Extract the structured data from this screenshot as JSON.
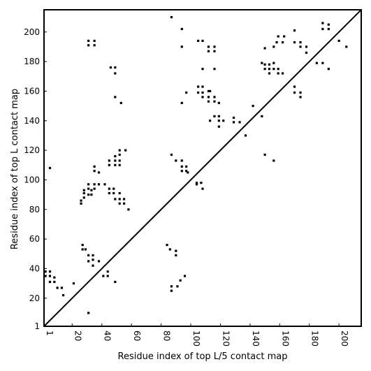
{
  "chart_data": {
    "type": "scatter",
    "title": "",
    "xlabel": "Residue index of top L/5 contact map",
    "ylabel": "Residue index of top L contact map",
    "xlim": [
      1,
      215
    ],
    "ylim": [
      1,
      215
    ],
    "x_ticks": [
      1,
      20,
      40,
      60,
      80,
      100,
      120,
      140,
      160,
      180,
      200
    ],
    "y_ticks": [
      1,
      20,
      40,
      60,
      80,
      100,
      120,
      140,
      160,
      180,
      200
    ],
    "x_tick_labels": [
      "1",
      "20",
      "40",
      "60",
      "80",
      "100",
      "120",
      "140",
      "160",
      "180",
      "200"
    ],
    "y_tick_labels": [
      "1",
      "20",
      "40",
      "60",
      "80",
      "100",
      "120",
      "140",
      "160",
      "180",
      "200"
    ],
    "grid": false,
    "diagonal": [
      [
        1,
        1
      ],
      [
        215,
        215
      ]
    ],
    "marker": "square",
    "color": "#000000",
    "series": [
      {
        "name": "",
        "points": [
          [
            31,
            194
          ],
          [
            31,
            191
          ],
          [
            35,
            194
          ],
          [
            35,
            191
          ],
          [
            46,
            176
          ],
          [
            49,
            176
          ],
          [
            49,
            172
          ],
          [
            49,
            156
          ],
          [
            53,
            152
          ],
          [
            5,
            108
          ],
          [
            26,
            86
          ],
          [
            26,
            84
          ],
          [
            28,
            91
          ],
          [
            28,
            93
          ],
          [
            28,
            88
          ],
          [
            31,
            90
          ],
          [
            31,
            94
          ],
          [
            31,
            97
          ],
          [
            33,
            93
          ],
          [
            33,
            90
          ],
          [
            35,
            109
          ],
          [
            35,
            106
          ],
          [
            35,
            97
          ],
          [
            35,
            94
          ],
          [
            38,
            105
          ],
          [
            38,
            97
          ],
          [
            42,
            97
          ],
          [
            45,
            94
          ],
          [
            45,
            91
          ],
          [
            45,
            113
          ],
          [
            45,
            110
          ],
          [
            48,
            91
          ],
          [
            48,
            94
          ],
          [
            49,
            116
          ],
          [
            49,
            113
          ],
          [
            49,
            110
          ],
          [
            49,
            87
          ],
          [
            52,
            120
          ],
          [
            52,
            117
          ],
          [
            52,
            113
          ],
          [
            52,
            110
          ],
          [
            52,
            91
          ],
          [
            52,
            87
          ],
          [
            52,
            84
          ],
          [
            55,
            87
          ],
          [
            55,
            84
          ],
          [
            56,
            120
          ],
          [
            58,
            80
          ],
          [
            27,
            56
          ],
          [
            27,
            53
          ],
          [
            29,
            53
          ],
          [
            31,
            49
          ],
          [
            31,
            45
          ],
          [
            34,
            49
          ],
          [
            34,
            46
          ],
          [
            34,
            42
          ],
          [
            38,
            45
          ],
          [
            41,
            35
          ],
          [
            44,
            38
          ],
          [
            44,
            35
          ],
          [
            49,
            31
          ],
          [
            2,
            38
          ],
          [
            2,
            35
          ],
          [
            5,
            38
          ],
          [
            5,
            35
          ],
          [
            5,
            31
          ],
          [
            8,
            34
          ],
          [
            8,
            31
          ],
          [
            10,
            27
          ],
          [
            13,
            27
          ],
          [
            14,
            22
          ],
          [
            21,
            30
          ],
          [
            31,
            10
          ],
          [
            84,
            56
          ],
          [
            86,
            53
          ],
          [
            87,
            28
          ],
          [
            87,
            25
          ],
          [
            90,
            52
          ],
          [
            90,
            49
          ],
          [
            91,
            28
          ],
          [
            93,
            32
          ],
          [
            96,
            35
          ],
          [
            87,
            210
          ],
          [
            94,
            202
          ],
          [
            94,
            190
          ],
          [
            94,
            152
          ],
          [
            97,
            159
          ],
          [
            87,
            117
          ],
          [
            90,
            113
          ],
          [
            94,
            113
          ],
          [
            94,
            109
          ],
          [
            94,
            106
          ],
          [
            97,
            109
          ],
          [
            97,
            106
          ],
          [
            98,
            105
          ],
          [
            104,
            98
          ],
          [
            104,
            97
          ],
          [
            107,
            98
          ],
          [
            108,
            94
          ],
          [
            105,
            194
          ],
          [
            108,
            194
          ],
          [
            108,
            175
          ],
          [
            105,
            163
          ],
          [
            105,
            159
          ],
          [
            108,
            163
          ],
          [
            108,
            159
          ],
          [
            108,
            156
          ],
          [
            112,
            190
          ],
          [
            112,
            187
          ],
          [
            112,
            160
          ],
          [
            112,
            156
          ],
          [
            112,
            153
          ],
          [
            113,
            160
          ],
          [
            113,
            140
          ],
          [
            116,
            190
          ],
          [
            116,
            187
          ],
          [
            116,
            175
          ],
          [
            116,
            156
          ],
          [
            116,
            153
          ],
          [
            116,
            143
          ],
          [
            119,
            152
          ],
          [
            119,
            143
          ],
          [
            119,
            140
          ],
          [
            119,
            136
          ],
          [
            122,
            140
          ],
          [
            129,
            142
          ],
          [
            129,
            139
          ],
          [
            133,
            139
          ],
          [
            137,
            130
          ],
          [
            142,
            150
          ],
          [
            148,
            143
          ],
          [
            148,
            179
          ],
          [
            150,
            189
          ],
          [
            150,
            178
          ],
          [
            150,
            175
          ],
          [
            150,
            117
          ],
          [
            153,
            175
          ],
          [
            153,
            172
          ],
          [
            153,
            178
          ],
          [
            156,
            179
          ],
          [
            156,
            175
          ],
          [
            156,
            190
          ],
          [
            156,
            113
          ],
          [
            158,
            193
          ],
          [
            159,
            197
          ],
          [
            159,
            175
          ],
          [
            159,
            172
          ],
          [
            162,
            193
          ],
          [
            162,
            172
          ],
          [
            163,
            197
          ],
          [
            170,
            201
          ],
          [
            170,
            193
          ],
          [
            170,
            163
          ],
          [
            170,
            159
          ],
          [
            174,
            193
          ],
          [
            174,
            190
          ],
          [
            174,
            159
          ],
          [
            174,
            156
          ],
          [
            178,
            190
          ],
          [
            178,
            186
          ],
          [
            185,
            179
          ],
          [
            189,
            206
          ],
          [
            189,
            202
          ],
          [
            189,
            179
          ],
          [
            193,
            205
          ],
          [
            193,
            202
          ],
          [
            193,
            175
          ],
          [
            200,
            194
          ],
          [
            205,
            190
          ]
        ]
      }
    ]
  }
}
